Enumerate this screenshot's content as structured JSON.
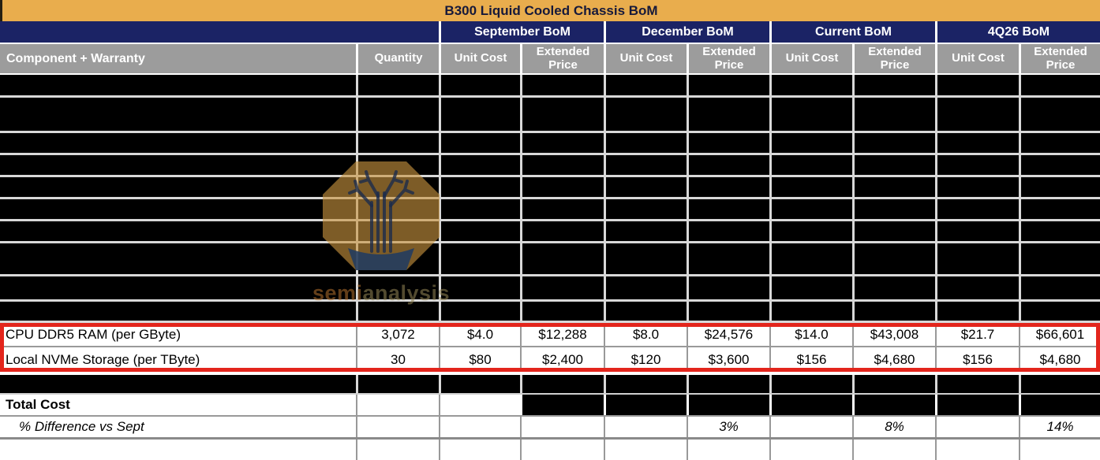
{
  "title": "B300 Liquid Cooled Chassis BoM",
  "column_groups": {
    "september": "September BoM",
    "december": "December BoM",
    "current": "Current BoM",
    "q4_26": "4Q26 BoM"
  },
  "column_headers": {
    "component": "Component + Warranty",
    "quantity": "Quantity",
    "unit_cost": "Unit Cost",
    "extended_price": "Extended Price"
  },
  "redacted_row_count": 10,
  "rows": [
    {
      "component": "CPU DDR5 RAM (per GByte)",
      "quantity": "3,072",
      "september": {
        "unit_cost": "$4.0",
        "extended_price": "$12,288"
      },
      "december": {
        "unit_cost": "$8.0",
        "extended_price": "$24,576"
      },
      "current": {
        "unit_cost": "$14.0",
        "extended_price": "$43,008"
      },
      "q4_26": {
        "unit_cost": "$21.7",
        "extended_price": "$66,601"
      }
    },
    {
      "component": "Local NVMe Storage (per TByte)",
      "quantity": "30",
      "september": {
        "unit_cost": "$80",
        "extended_price": "$2,400"
      },
      "december": {
        "unit_cost": "$120",
        "extended_price": "$3,600"
      },
      "current": {
        "unit_cost": "$156",
        "extended_price": "$4,680"
      },
      "q4_26": {
        "unit_cost": "$156",
        "extended_price": "$4,680"
      }
    }
  ],
  "footer": {
    "total_cost_label": "Total Cost",
    "pct_difference_label": "% Difference vs Sept",
    "pct_difference": {
      "december": "3%",
      "current": "8%",
      "q4_26": "14%"
    }
  },
  "watermark": {
    "text_semi": "semi",
    "text_analysis": "analysis",
    "logo": "semianalysis-octagon-tree-logo"
  },
  "colors": {
    "title-bg": "#E9AD4D",
    "title-text": "#16193A",
    "group-bg": "#1B2365",
    "header-bg": "#9C9C9C",
    "highlight-border": "#E3251C",
    "grid-light": "#D8D8D8",
    "grid-gray": "#999999",
    "watermark-gold": "#C9953F"
  }
}
